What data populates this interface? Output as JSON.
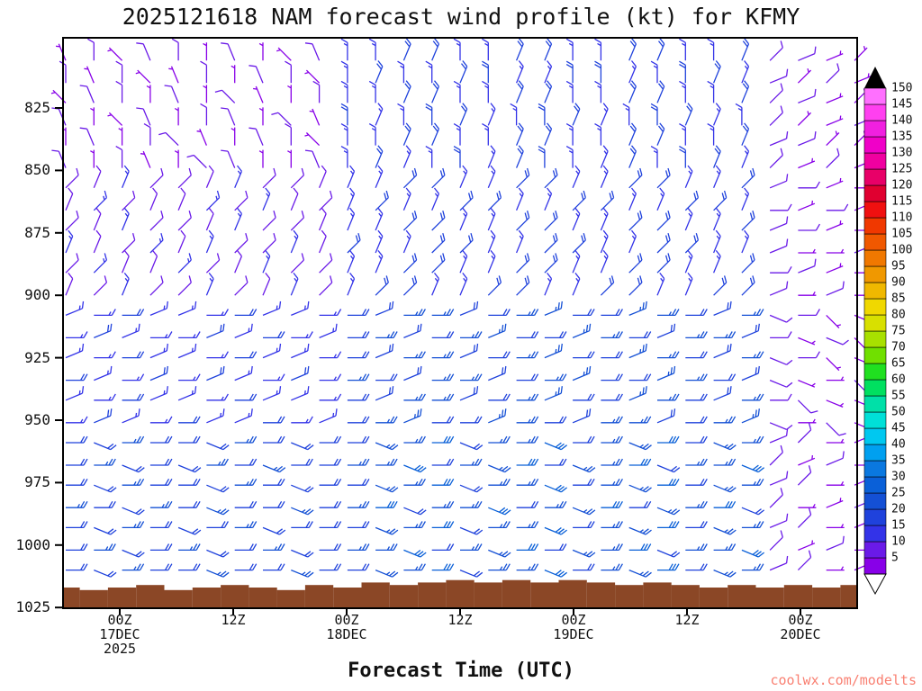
{
  "title": "2025121618 NAM forecast wind profile (kt) for KFMY",
  "xlabel": "Forecast Time (UTC)",
  "watermark": "coolwx.com/modelts",
  "colors": {
    "terrain": "#8B4726",
    "axis": "#000000",
    "watermark": "#F98072",
    "background": "#FFFFFF"
  },
  "axes": {
    "y_ticks": [
      825,
      850,
      875,
      900,
      925,
      950,
      975,
      1000,
      1025
    ],
    "x_ticks": [
      {
        "hour": 6,
        "line1": "00Z",
        "line2": "17DEC",
        "line3": "2025"
      },
      {
        "hour": 18,
        "line1": "12Z",
        "line2": "",
        "line3": ""
      },
      {
        "hour": 30,
        "line1": "00Z",
        "line2": "18DEC",
        "line3": ""
      },
      {
        "hour": 42,
        "line1": "12Z",
        "line2": "",
        "line3": ""
      },
      {
        "hour": 54,
        "line1": "00Z",
        "line2": "19DEC",
        "line3": ""
      },
      {
        "hour": 66,
        "line1": "12Z",
        "line2": "",
        "line3": ""
      },
      {
        "hour": 78,
        "line1": "00Z",
        "line2": "20DEC",
        "line3": ""
      }
    ]
  },
  "colorbar": {
    "position": "right",
    "levels": [
      5,
      10,
      15,
      20,
      25,
      30,
      35,
      40,
      45,
      50,
      55,
      60,
      65,
      70,
      75,
      80,
      85,
      90,
      95,
      100,
      105,
      110,
      115,
      120,
      125,
      130,
      135,
      140,
      145,
      150
    ],
    "colors": [
      "#8800E8",
      "#6A1AE8",
      "#3333E8",
      "#1F42DC",
      "#1450D5",
      "#0A60D8",
      "#0A78E0",
      "#00A0F0",
      "#00C8F0",
      "#00E0D8",
      "#00E0A8",
      "#00E060",
      "#20E020",
      "#70E000",
      "#A8E000",
      "#D8E000",
      "#F0D800",
      "#F0B800",
      "#F09800",
      "#F07800",
      "#F05800",
      "#F03800",
      "#F01010",
      "#E00030",
      "#E80068",
      "#F000A0",
      "#F000C8",
      "#F020E0",
      "#FF40F0",
      "#FF70FF"
    ],
    "top_arrow": "black",
    "bottom_arrow": "white"
  },
  "chart_data": {
    "type": "wind-barb-time-height",
    "model": "NAM",
    "init": "2025121618",
    "station": "KFMY",
    "speed_unit": "kt",
    "axis_ranges": {
      "pressure_top": 797,
      "pressure_bottom": 1025,
      "hours": [
        0,
        84
      ]
    },
    "x_hours": [
      0,
      3,
      6,
      9,
      12,
      15,
      18,
      21,
      24,
      27,
      30,
      33,
      36,
      39,
      42,
      45,
      48,
      51,
      54,
      57,
      60,
      63,
      66,
      69,
      72,
      75,
      78,
      81,
      84
    ],
    "pressures": [
      806,
      815,
      823,
      832,
      840,
      849,
      857,
      866,
      874,
      883,
      891,
      900,
      908,
      917,
      925,
      934,
      942,
      951,
      959,
      968,
      976,
      985,
      993,
      1002,
      1010
    ],
    "speed_code_note": "each char = wind speed / 5 kt at (row pressure, column hour)",
    "speed_codes": [
      "12122121123344334433443342211",
      "21211212213433443344334432121",
      "12212121123344334433443342211",
      "21121221214334433443344332112",
      "12122112213344334433443342211",
      "21211221123433434433434432121",
      "22322232223344334433443342211",
      "23222323223433443344334432121",
      "22322232223344334433443342211",
      "32232322324334433443344332112",
      "23223223223344334433443342211",
      "22322322323443344334433442121",
      "33433343334455445544554452211",
      "34333434334544554455445542121",
      "33433343334455445544554452211",
      "43343433435445544554455442112",
      "33433343334455445544554452211",
      "34334334334554455445544552121",
      "44544454444556455645564552211",
      "45444545445564556455645562121",
      "44544454444556455645564552211",
      "54454544545645564556455642112",
      "44544454444556455645564552211",
      "45445445445564556455645562121",
      "44544544544556455645564552211"
    ],
    "dir_code_note": "hex char * 22.5 = direction wind blows FROM (0=N)",
    "dir_codes": [
      "F0EF00F0EF0011001100110012332",
      "0F0EF00F0E0100101100100113223",
      "EF00F0EF000011001100110012332",
      "F0EF00F0EF0100110011001102233",
      "0F00EF0F0E0011001100110013322",
      "F00F0EF00F0110011001100112323",
      "21122112211122112211221123434",
      "12211221121211221122112214343",
      "21122112211122112211221123434",
      "11221122112112211221122113443",
      "22112211221122112211221124334",
      "12122121121221122112211223434",
      "34433443344344344344344345465",
      "43344334434434434434434434556",
      "34433443344344344344344345465",
      "43434334344434434434434435546",
      "34433443344344344344344344655",
      "43344334434434434434434435465",
      "45444544544544544544544543243",
      "44545445444454454454454452334",
      "45444544544544544544544543243",
      "44544544544454454454454452433",
      "45445445444544544544544543243",
      "44544544544454454454454452334",
      "45444544544544544544544543243"
    ],
    "terrain_top_hpa": [
      1017,
      1018,
      1017,
      1016,
      1018,
      1017,
      1016,
      1017,
      1018,
      1016,
      1017,
      1015,
      1016,
      1015,
      1014,
      1015,
      1014,
      1015,
      1014,
      1015,
      1016,
      1015,
      1016,
      1017,
      1016,
      1017,
      1016,
      1017,
      1016
    ]
  }
}
